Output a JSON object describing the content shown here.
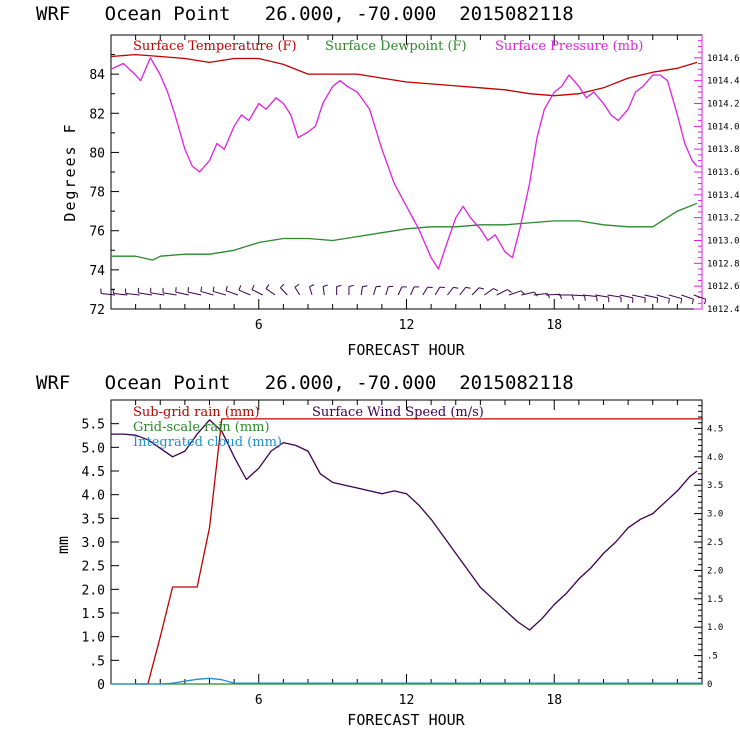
{
  "chart_data": [
    {
      "type": "line",
      "title": "WRF   Ocean Point   26.000, -70.000  2015082118",
      "xlabel": "FORECAST HOUR",
      "ylabel": "Degrees F",
      "xlim": [
        0,
        24
      ],
      "ylim": [
        72,
        86
      ],
      "y2lim": [
        1012.4,
        1014.8
      ],
      "x_ticks": [
        6,
        12,
        18
      ],
      "y_ticks": [
        72,
        74,
        76,
        78,
        80,
        82,
        84
      ],
      "y2_ticks": [
        "1012.4",
        "1012.6",
        "1012.8",
        "1013.0",
        "1013.2",
        "1013.4",
        "1013.6",
        "1013.8",
        "1014.0",
        "1014.2",
        "1014.4",
        "1014.6"
      ],
      "legend_position": "top-inside",
      "colors": {
        "temperature": "#c00000",
        "dewpoint": "#2a8a2a",
        "pressure": "#e020e0",
        "wind": "#3c0050"
      },
      "series": [
        {
          "name": "Surface Temperature (F)",
          "axis": "left",
          "color": "#c00000",
          "x": [
            0,
            1,
            2,
            3,
            4,
            5,
            6,
            7,
            8,
            9,
            10,
            11,
            12,
            13,
            14,
            15,
            16,
            17,
            18,
            19,
            20,
            21,
            22,
            23,
            23.8
          ],
          "y": [
            84.9,
            85.0,
            84.9,
            84.8,
            84.6,
            84.8,
            84.8,
            84.5,
            84.0,
            84.0,
            84.0,
            83.8,
            83.6,
            83.5,
            83.4,
            83.3,
            83.2,
            83.0,
            82.9,
            83.0,
            83.3,
            83.8,
            84.1,
            84.3,
            84.6
          ]
        },
        {
          "name": "Surface Dewpoint (F)",
          "axis": "left",
          "color": "#2a8a2a",
          "x": [
            0,
            1,
            1.7,
            2,
            3,
            4,
            5,
            6,
            7,
            8,
            9,
            10,
            11,
            12,
            13,
            14,
            15,
            16,
            17,
            18,
            19,
            20,
            21,
            22,
            23,
            23.8
          ],
          "y": [
            74.7,
            74.7,
            74.5,
            74.7,
            74.8,
            74.8,
            75.0,
            75.4,
            75.6,
            75.6,
            75.5,
            75.7,
            75.9,
            76.1,
            76.2,
            76.2,
            76.3,
            76.3,
            76.4,
            76.5,
            76.5,
            76.3,
            76.2,
            76.2,
            77.0,
            77.4
          ]
        },
        {
          "name": "Surface Pressure (mb)",
          "axis": "right",
          "color": "#e020e0",
          "x": [
            0,
            0.5,
            1,
            1.2,
            1.6,
            2,
            2.3,
            2.6,
            3,
            3.3,
            3.6,
            4,
            4.3,
            4.6,
            5,
            5.3,
            5.6,
            6,
            6.3,
            6.7,
            7,
            7.3,
            7.6,
            8,
            8.3,
            8.6,
            9,
            9.3,
            9.6,
            10,
            10.5,
            11,
            11.5,
            12,
            12.5,
            13,
            13.3,
            13.6,
            14,
            14.3,
            14.6,
            15,
            15.3,
            15.6,
            16,
            16.3,
            16.6,
            17,
            17.3,
            17.6,
            18,
            18.3,
            18.6,
            19,
            19.3,
            19.6,
            20,
            20.3,
            20.6,
            21,
            21.3,
            21.6,
            22,
            22.3,
            22.6,
            23,
            23.3,
            23.6,
            23.8
          ],
          "y": [
            1014.5,
            1014.55,
            1014.45,
            1014.4,
            1014.6,
            1014.45,
            1014.3,
            1014.1,
            1013.8,
            1013.65,
            1013.6,
            1013.7,
            1013.85,
            1013.8,
            1014.0,
            1014.1,
            1014.05,
            1014.2,
            1014.15,
            1014.25,
            1014.2,
            1014.1,
            1013.9,
            1013.95,
            1014.0,
            1014.2,
            1014.35,
            1014.4,
            1014.35,
            1014.3,
            1014.15,
            1013.8,
            1013.5,
            1013.3,
            1013.1,
            1012.85,
            1012.75,
            1012.95,
            1013.2,
            1013.3,
            1013.2,
            1013.1,
            1013.0,
            1013.05,
            1012.9,
            1012.85,
            1013.1,
            1013.5,
            1013.9,
            1014.15,
            1014.3,
            1014.35,
            1014.45,
            1014.35,
            1014.25,
            1014.3,
            1014.2,
            1014.1,
            1014.05,
            1014.15,
            1014.3,
            1014.35,
            1014.45,
            1014.45,
            1014.4,
            1014.1,
            1013.85,
            1013.7,
            1013.65
          ]
        }
      ],
      "wind_barbs": {
        "color": "#3c0050",
        "hours": [
          0,
          0.5,
          1,
          1.5,
          2,
          2.5,
          3,
          3.5,
          4,
          4.5,
          5,
          5.5,
          6,
          6.5,
          7,
          7.5,
          8,
          8.5,
          9,
          9.5,
          10,
          10.5,
          11,
          11.5,
          12,
          12.5,
          13,
          13.5,
          14,
          14.5,
          15,
          15.5,
          16,
          16.5,
          17,
          17.5,
          18,
          18.5,
          19,
          19.5,
          20,
          20.5,
          21,
          21.5,
          22,
          22.5,
          23,
          23.5
        ],
        "direction_deg": [
          280,
          280,
          280,
          285,
          285,
          285,
          290,
          290,
          295,
          295,
          300,
          305,
          310,
          320,
          330,
          340,
          350,
          355,
          0,
          0,
          5,
          10,
          10,
          15,
          15,
          20,
          20,
          25,
          25,
          30,
          40,
          50,
          60,
          70,
          80,
          85,
          90,
          95,
          100,
          105,
          105,
          110,
          110,
          110,
          115,
          115,
          120,
          120
        ]
      }
    },
    {
      "type": "line",
      "title": "WRF   Ocean Point   26.000, -70.000  2015082118",
      "xlabel": "FORECAST HOUR",
      "ylabel": "mm",
      "xlim": [
        0,
        24
      ],
      "ylim": [
        0,
        6
      ],
      "y2lim": [
        0,
        5.0
      ],
      "x_ticks": [
        6,
        12,
        18
      ],
      "y_ticks": [
        "0",
        ".5",
        "1.0",
        "1.5",
        "2.0",
        "2.5",
        "3.0",
        "3.5",
        "4.0",
        "4.5",
        "5.0",
        "5.5"
      ],
      "y2_ticks": [
        "0",
        ".5",
        "1.0",
        "1.5",
        "2.0",
        "2.5",
        "3.0",
        "3.5",
        "4.0",
        "4.5"
      ],
      "legend_position": "top-inside",
      "series": [
        {
          "name": "Sub-grid rain (mm)",
          "axis": "left",
          "color": "#c00000",
          "x": [
            1,
            1.5,
            2,
            2.5,
            3,
            3.5,
            4,
            4.5,
            4.6,
            24
          ],
          "y": [
            0,
            0,
            1.0,
            2.05,
            2.05,
            2.05,
            3.3,
            5.6,
            5.6,
            5.6
          ]
        },
        {
          "name": "Grid-scale rain (mm)",
          "axis": "left",
          "color": "#2a8a2a",
          "x": [
            0,
            24
          ],
          "y": [
            0,
            0
          ]
        },
        {
          "name": "Integrated cloud (mm)",
          "axis": "left",
          "color": "#1e90d0",
          "x": [
            0,
            2,
            2.5,
            3,
            3.5,
            4,
            4.5,
            5,
            24
          ],
          "y": [
            0,
            0,
            0.02,
            0.06,
            0.1,
            0.12,
            0.09,
            0.02,
            0.02
          ]
        },
        {
          "name": "Surface Wind Speed (m/s)",
          "axis": "right",
          "color": "#3c0050",
          "x": [
            0,
            0.5,
            1,
            1.5,
            2,
            2.5,
            3,
            3.5,
            4,
            4.5,
            5,
            5.5,
            6,
            6.5,
            7,
            7.5,
            8,
            8.5,
            9,
            9.5,
            10,
            10.5,
            11,
            11.5,
            12,
            12.5,
            13,
            13.5,
            14,
            14.5,
            15,
            15.5,
            16,
            16.5,
            17,
            17.5,
            18,
            18.5,
            19,
            19.5,
            20,
            20.5,
            21,
            21.5,
            22,
            22.5,
            23,
            23.5,
            23.8
          ],
          "y": [
            4.4,
            4.4,
            4.38,
            4.3,
            4.15,
            4.0,
            4.1,
            4.4,
            4.65,
            4.45,
            4.0,
            3.6,
            3.8,
            4.1,
            4.25,
            4.2,
            4.1,
            3.7,
            3.55,
            3.5,
            3.45,
            3.4,
            3.35,
            3.4,
            3.35,
            3.15,
            2.9,
            2.6,
            2.3,
            2.0,
            1.7,
            1.5,
            1.3,
            1.1,
            0.95,
            1.15,
            1.4,
            1.6,
            1.85,
            2.05,
            2.3,
            2.5,
            2.75,
            2.9,
            3.0,
            3.2,
            3.4,
            3.65,
            3.75
          ]
        }
      ]
    }
  ]
}
